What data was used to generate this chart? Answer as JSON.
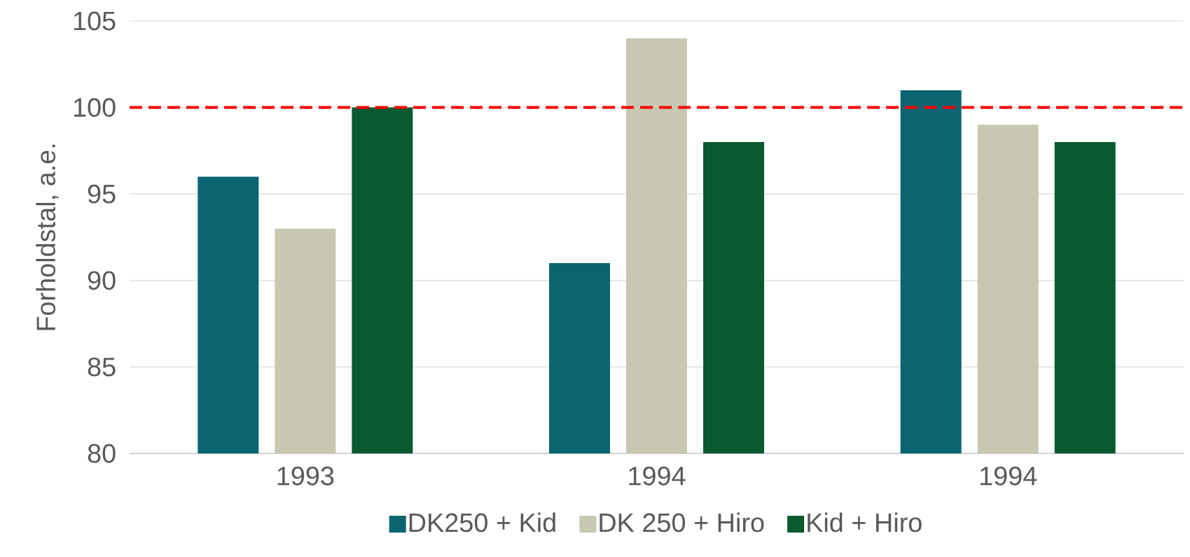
{
  "chart_data": {
    "type": "bar",
    "ylabel": "Forholdstal, a.e.",
    "categories": [
      "1993",
      "1994",
      "1994"
    ],
    "series": [
      {
        "name": "DK250 + Kid",
        "color": "#0a6570",
        "values": [
          96,
          91,
          101
        ]
      },
      {
        "name": "DK 250 + Hiro",
        "color": "#c8c8b2",
        "values": [
          93,
          104,
          99
        ]
      },
      {
        "name": "Kid + Hiro",
        "color": "#0a5a30",
        "values": [
          100,
          98,
          98
        ]
      }
    ],
    "ylim": [
      80,
      105
    ],
    "yticks": [
      80,
      85,
      90,
      95,
      100,
      105
    ],
    "grid": "y",
    "legend": "bottom",
    "ref_lines": [
      {
        "axis": "y",
        "value": 100,
        "color": "#ff0000",
        "line_style": "dashed"
      }
    ]
  }
}
